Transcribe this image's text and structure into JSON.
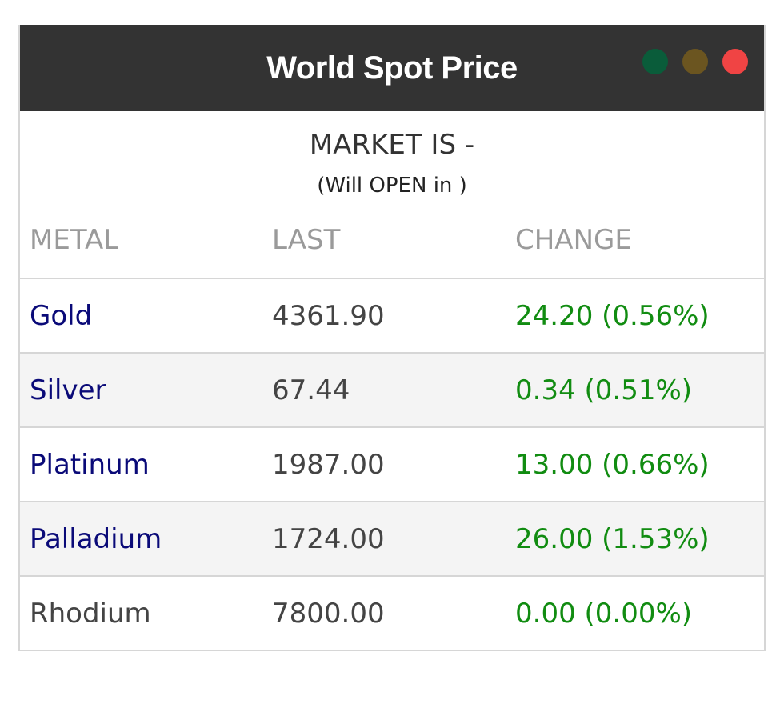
{
  "header": {
    "title": "World Spot Price",
    "window_dots": [
      {
        "name": "green-dot",
        "color": "#0a5c3a"
      },
      {
        "name": "olive-dot",
        "color": "#6b5520"
      },
      {
        "name": "red-dot",
        "color": "#f04444"
      }
    ]
  },
  "market": {
    "status": "MARKET IS -",
    "open_text": "(Will OPEN in )"
  },
  "table": {
    "columns": [
      "METAL",
      "LAST",
      "CHANGE"
    ],
    "rows": [
      {
        "metal": "Gold",
        "last": "4361.90",
        "change": "24.20 (0.56%)",
        "link": true
      },
      {
        "metal": "Silver",
        "last": "67.44",
        "change": "0.34 (0.51%)",
        "link": true
      },
      {
        "metal": "Platinum",
        "last": "1987.00",
        "change": "13.00 (0.66%)",
        "link": true
      },
      {
        "metal": "Palladium",
        "last": "1724.00",
        "change": "26.00 (1.53%)",
        "link": true
      },
      {
        "metal": "Rhodium",
        "last": "7800.00",
        "change": "0.00 (0.00%)",
        "link": false
      }
    ]
  },
  "colors": {
    "title_bar": "#333333",
    "metal_link": "#0a0a78",
    "change_positive": "#118c11",
    "header_text": "#9a9a9a",
    "alt_row": "#f4f4f4"
  }
}
